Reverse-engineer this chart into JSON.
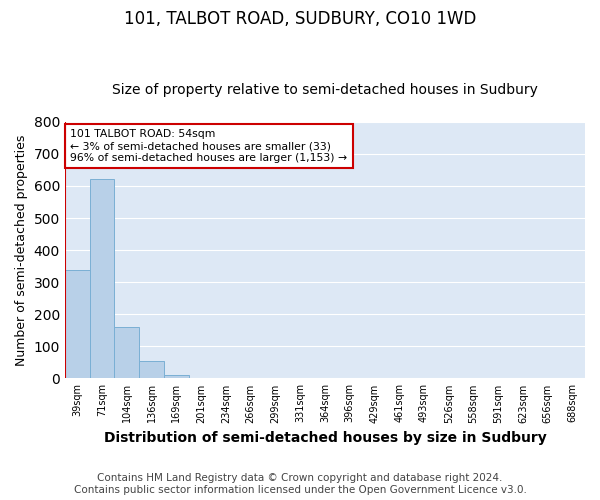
{
  "title1": "101, TALBOT ROAD, SUDBURY, CO10 1WD",
  "title2": "Size of property relative to semi-detached houses in Sudbury",
  "xlabel": "Distribution of semi-detached houses by size in Sudbury",
  "ylabel": "Number of semi-detached properties",
  "categories": [
    "39sqm",
    "71sqm",
    "104sqm",
    "136sqm",
    "169sqm",
    "201sqm",
    "234sqm",
    "266sqm",
    "299sqm",
    "331sqm",
    "364sqm",
    "396sqm",
    "429sqm",
    "461sqm",
    "493sqm",
    "526sqm",
    "558sqm",
    "591sqm",
    "623sqm",
    "656sqm",
    "688sqm"
  ],
  "values": [
    338,
    623,
    160,
    55,
    10,
    0,
    0,
    0,
    0,
    0,
    0,
    0,
    0,
    0,
    0,
    0,
    0,
    0,
    0,
    0,
    0
  ],
  "bar_color": "#b8d0e8",
  "bar_edge_color": "#7aafd4",
  "annotation_line_color": "#cc0000",
  "annotation_box_text": "101 TALBOT ROAD: 54sqm\n← 3% of semi-detached houses are smaller (33)\n96% of semi-detached houses are larger (1,153) →",
  "annotation_box_color": "#cc0000",
  "ylim": [
    0,
    800
  ],
  "yticks": [
    0,
    100,
    200,
    300,
    400,
    500,
    600,
    700,
    800
  ],
  "bg_color": "#dde8f5",
  "footer": "Contains HM Land Registry data © Crown copyright and database right 2024.\nContains public sector information licensed under the Open Government Licence v3.0.",
  "title1_fontsize": 12,
  "title2_fontsize": 10,
  "xlabel_fontsize": 10,
  "ylabel_fontsize": 9,
  "footer_fontsize": 7.5
}
